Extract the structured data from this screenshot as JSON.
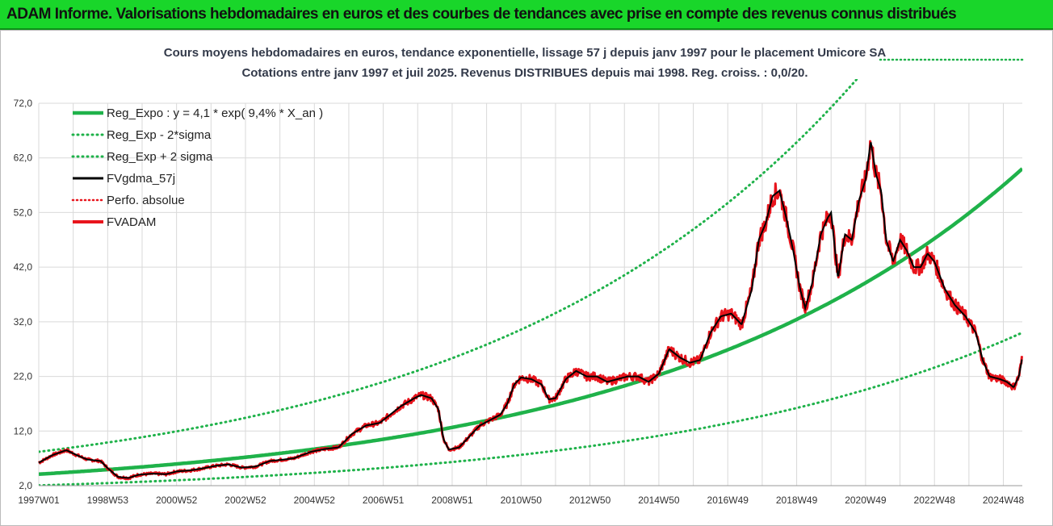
{
  "banner": {
    "title": "ADAM Informe. Valorisations hebdomadaires en euros et des courbes de tendances avec prise en compte des revenus connus distribués"
  },
  "colors": {
    "banner_bg": "#19d62a",
    "reg_expo": "#1fb24a",
    "sigma": "#1fb24a",
    "fvgdma": "#000000",
    "perfo": "#e8141c",
    "fvadam": "#e8141c",
    "grid": "#d9d9d9"
  },
  "chart_data": {
    "type": "line",
    "title": "Cours moyens hebdomadaires en euros, tendance exponentielle, lissage 57 j depuis janv 1997 pour le placement Umicore SA",
    "subtitle": "Cotations entre janv 1997 et juil 2025. Revenus DISTRIBUES depuis mai 1998. Reg. croiss. : 0,0/20.",
    "x_range": [
      1997.0,
      2025.55
    ],
    "x_tick_labels": [
      "1997W01",
      "1998W53",
      "2000W52",
      "2002W52",
      "2004W52",
      "2006W51",
      "2008W51",
      "2010W50",
      "2012W50",
      "2014W50",
      "2016W49",
      "2018W49",
      "2020W49",
      "2022W48",
      "2024W48"
    ],
    "x_tick_years": [
      1997.0,
      1999.0,
      2001.0,
      2003.0,
      2005.0,
      2007.0,
      2009.0,
      2011.0,
      2013.0,
      2015.0,
      2017.0,
      2019.0,
      2021.0,
      2023.0,
      2025.0
    ],
    "y_ticks": [
      "2,0",
      "12,0",
      "22,0",
      "32,0",
      "42,0",
      "52,0",
      "62,0",
      "72,0"
    ],
    "y_tick_values": [
      2,
      12,
      22,
      32,
      42,
      52,
      62,
      72
    ],
    "ylim": [
      2,
      72
    ],
    "grid": true,
    "legend_position": "top-left",
    "series": [
      {
        "name": "Reg_Expo : y = 4,1 * exp( 9,4% *  X_an )",
        "kind": "exp",
        "a": 4.1,
        "b": 0.094,
        "scale": 1.0,
        "style": "solid-thick"
      },
      {
        "name": "Reg_Exp - 2*sigma",
        "kind": "exp",
        "a": 4.1,
        "b": 0.094,
        "scale": 0.5,
        "style": "dotted"
      },
      {
        "name": "Reg_Exp + 2 sigma",
        "kind": "exp",
        "a": 4.1,
        "b": 0.094,
        "scale": 2.0,
        "style": "dotted"
      },
      {
        "name": "FVgdma_57j",
        "style": "solid-black"
      },
      {
        "name": "Perfo. absolue",
        "style": "dotted-red"
      },
      {
        "name": "FVADAM",
        "style": "solid-red"
      }
    ],
    "fvadam_points": [
      [
        1997.0,
        6.2
      ],
      [
        1997.4,
        7.6
      ],
      [
        1997.8,
        8.5
      ],
      [
        1998.1,
        7.6
      ],
      [
        1998.4,
        6.8
      ],
      [
        1998.8,
        6.5
      ],
      [
        1999.0,
        5.2
      ],
      [
        1999.3,
        3.6
      ],
      [
        1999.6,
        3.4
      ],
      [
        1999.9,
        4.0
      ],
      [
        2000.3,
        4.2
      ],
      [
        2000.7,
        4.1
      ],
      [
        2001.0,
        4.6
      ],
      [
        2001.4,
        4.8
      ],
      [
        2001.8,
        5.2
      ],
      [
        2002.1,
        5.6
      ],
      [
        2002.5,
        5.9
      ],
      [
        2002.9,
        5.3
      ],
      [
        2003.3,
        5.5
      ],
      [
        2003.7,
        6.5
      ],
      [
        2004.0,
        6.7
      ],
      [
        2004.4,
        7.0
      ],
      [
        2004.9,
        8.2
      ],
      [
        2005.3,
        8.7
      ],
      [
        2005.7,
        9.0
      ],
      [
        2006.1,
        11.5
      ],
      [
        2006.5,
        13.0
      ],
      [
        2006.9,
        13.5
      ],
      [
        2007.2,
        15.0
      ],
      [
        2007.5,
        16.5
      ],
      [
        2007.9,
        18.0
      ],
      [
        2008.1,
        18.6
      ],
      [
        2008.4,
        18.0
      ],
      [
        2008.6,
        16.0
      ],
      [
        2008.75,
        10.5
      ],
      [
        2008.9,
        8.6
      ],
      [
        2009.2,
        9.0
      ],
      [
        2009.5,
        11.0
      ],
      [
        2009.8,
        13.0
      ],
      [
        2010.1,
        14.0
      ],
      [
        2010.4,
        15.0
      ],
      [
        2010.6,
        17.0
      ],
      [
        2010.8,
        20.5
      ],
      [
        2011.0,
        21.8
      ],
      [
        2011.3,
        21.5
      ],
      [
        2011.6,
        20.5
      ],
      [
        2011.8,
        17.8
      ],
      [
        2012.0,
        18.0
      ],
      [
        2012.3,
        21.5
      ],
      [
        2012.6,
        23.0
      ],
      [
        2012.9,
        22.0
      ],
      [
        2013.2,
        22.0
      ],
      [
        2013.5,
        21.0
      ],
      [
        2013.8,
        21.5
      ],
      [
        2014.1,
        22.0
      ],
      [
        2014.4,
        22.0
      ],
      [
        2014.7,
        21.0
      ],
      [
        2015.0,
        22.5
      ],
      [
        2015.3,
        27.0
      ],
      [
        2015.6,
        25.5
      ],
      [
        2015.9,
        24.5
      ],
      [
        2016.2,
        25.0
      ],
      [
        2016.5,
        30.0
      ],
      [
        2016.8,
        33.0
      ],
      [
        2017.1,
        33.5
      ],
      [
        2017.4,
        31.5
      ],
      [
        2017.7,
        38.0
      ],
      [
        2017.9,
        47.0
      ],
      [
        2018.1,
        50.0
      ],
      [
        2018.3,
        55.0
      ],
      [
        2018.5,
        56.0
      ],
      [
        2018.7,
        51.0
      ],
      [
        2018.9,
        45.0
      ],
      [
        2019.1,
        38.0
      ],
      [
        2019.25,
        34.5
      ],
      [
        2019.45,
        39.0
      ],
      [
        2019.7,
        48.0
      ],
      [
        2019.9,
        51.0
      ],
      [
        2020.0,
        52.0
      ],
      [
        2020.2,
        40.0
      ],
      [
        2020.4,
        48.0
      ],
      [
        2020.6,
        47.0
      ],
      [
        2020.8,
        54.0
      ],
      [
        2021.0,
        58.0
      ],
      [
        2021.15,
        65.0
      ],
      [
        2021.3,
        59.0
      ],
      [
        2021.45,
        56.0
      ],
      [
        2021.6,
        47.0
      ],
      [
        2021.8,
        43.0
      ],
      [
        2022.0,
        47.0
      ],
      [
        2022.2,
        45.0
      ],
      [
        2022.4,
        42.0
      ],
      [
        2022.6,
        42.0
      ],
      [
        2022.8,
        44.5
      ],
      [
        2023.0,
        43.0
      ],
      [
        2023.3,
        38.0
      ],
      [
        2023.6,
        35.0
      ],
      [
        2023.9,
        33.0
      ],
      [
        2024.2,
        30.0
      ],
      [
        2024.4,
        25.0
      ],
      [
        2024.6,
        22.0
      ],
      [
        2024.9,
        21.5
      ],
      [
        2025.1,
        21.0
      ],
      [
        2025.3,
        20.0
      ],
      [
        2025.45,
        22.0
      ],
      [
        2025.55,
        25.5
      ]
    ]
  }
}
